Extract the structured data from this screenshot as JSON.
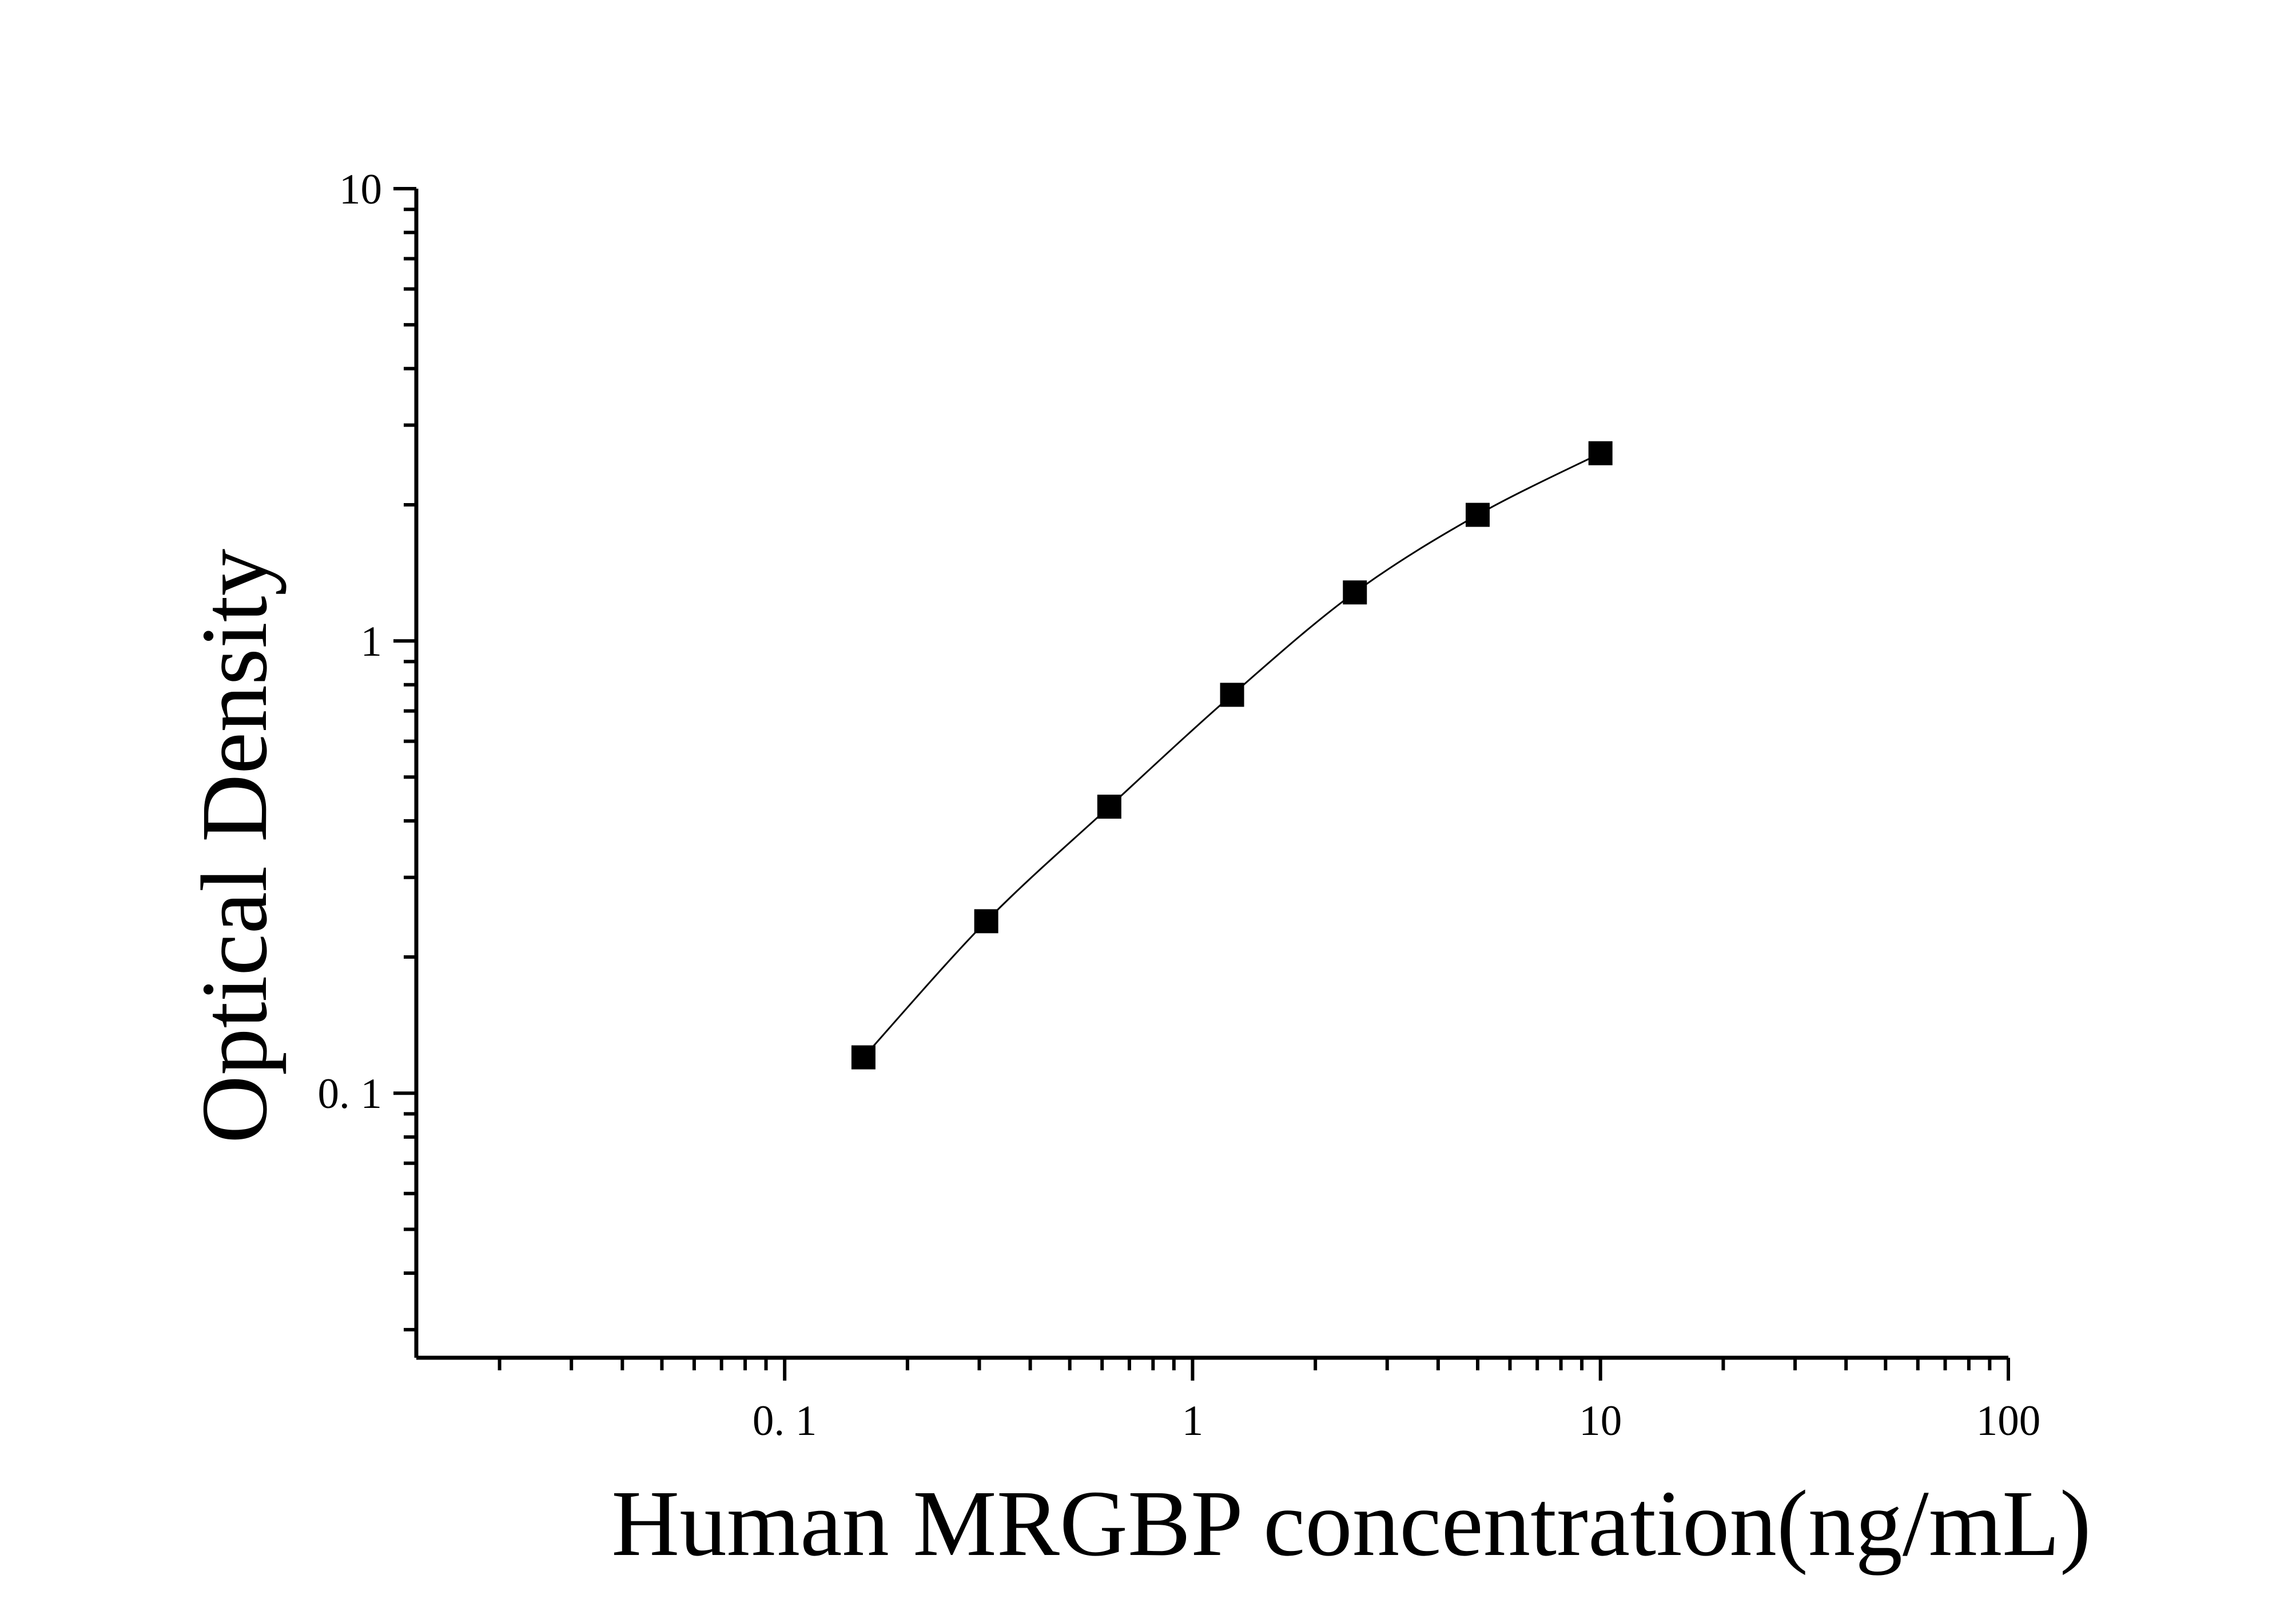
{
  "chart_data": {
    "type": "scatter",
    "title": "",
    "xlabel": "Human MRGBP concentration(ng/mL)",
    "ylabel": "Optical Density",
    "x_scale": "log",
    "y_scale": "log",
    "xlim": [
      0.0125,
      100
    ],
    "ylim": [
      0.026,
      10
    ],
    "x_ticks": [
      {
        "value": 0.1,
        "label": "0. 1"
      },
      {
        "value": 1,
        "label": "1"
      },
      {
        "value": 10,
        "label": "10"
      },
      {
        "value": 100,
        "label": "100"
      }
    ],
    "y_ticks": [
      {
        "value": 0.1,
        "label": "0. 1"
      },
      {
        "value": 1,
        "label": "1"
      },
      {
        "value": 10,
        "label": "10"
      }
    ],
    "grid": false,
    "legend": "none",
    "series": [
      {
        "marker": "square",
        "fit_line": true,
        "color": "#000000",
        "x": [
          0.156,
          0.312,
          0.625,
          1.25,
          2.5,
          5,
          10
        ],
        "y": [
          0.12,
          0.24,
          0.43,
          0.76,
          1.28,
          1.9,
          2.6
        ]
      }
    ]
  }
}
